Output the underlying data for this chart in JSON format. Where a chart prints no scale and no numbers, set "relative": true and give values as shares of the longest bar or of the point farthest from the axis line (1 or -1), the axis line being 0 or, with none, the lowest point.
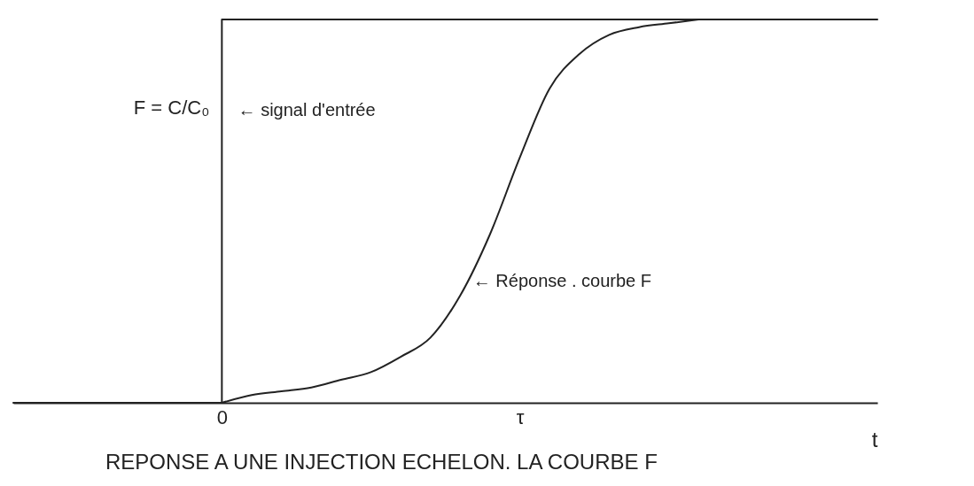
{
  "chart_data": {
    "type": "line",
    "title": "REPONSE A UNE INJECTION ECHELON. LA COURBE F",
    "xlabel": "t",
    "ylabel": "F = C/C₀",
    "relative": true,
    "categories": [
      null,
      null,
      null,
      null,
      null,
      null,
      null,
      "0",
      null,
      null,
      null,
      null,
      null,
      null,
      null,
      null,
      null,
      "τ",
      null,
      null,
      null,
      null,
      null,
      null,
      null,
      null,
      null,
      null,
      null,
      null
    ],
    "series": [
      {
        "type": "step",
        "color": "#222222",
        "values": [
          0,
          0,
          0,
          0,
          0,
          0,
          0,
          1,
          1,
          1,
          1,
          1,
          1,
          1,
          1,
          1,
          1,
          1,
          1,
          1,
          1,
          1,
          1,
          1,
          1,
          1,
          1,
          1,
          1,
          1
        ]
      },
      {
        "color": "#222222",
        "values": [
          null,
          null,
          null,
          null,
          null,
          null,
          null,
          0,
          0.02,
          0.03,
          0.04,
          0.06,
          0.08,
          0.12,
          0.17,
          0.28,
          0.44,
          0.64,
          0.82,
          0.91,
          0.96,
          0.98,
          0.99,
          1,
          null,
          null,
          null,
          null,
          null,
          null
        ]
      }
    ],
    "annotations": [
      "← signal d'entrée",
      "← Réponse . courbe F"
    ],
    "grid": false
  }
}
